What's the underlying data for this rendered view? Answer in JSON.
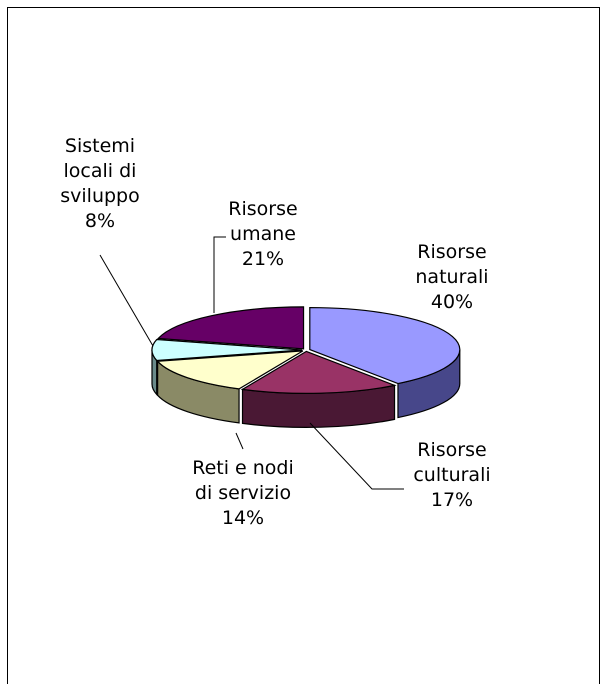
{
  "chart_data": {
    "type": "pie",
    "title": "",
    "slices": [
      {
        "label_lines": [
          "Risorse",
          "naturali"
        ],
        "value": 40,
        "value_label": "40%",
        "color": "#9999ff",
        "side_color": "#47478a"
      },
      {
        "label_lines": [
          "Risorse",
          "culturali"
        ],
        "value": 17,
        "value_label": "17%",
        "color": "#993366",
        "side_color": "#4a1834"
      },
      {
        "label_lines": [
          "Reti e nodi",
          "di servizio"
        ],
        "value": 14,
        "value_label": "14%",
        "color": "#ffffcc",
        "side_color": "#8a8a66"
      },
      {
        "label_lines": [
          "Sistemi",
          "locali di",
          "sviluppo"
        ],
        "value": 8,
        "value_label": "8%",
        "color": "#ccffff",
        "side_color": "#6a8a8a"
      },
      {
        "label_lines": [
          "Risorse",
          "umane"
        ],
        "value": 21,
        "value_label": "21%",
        "color": "#660066",
        "side_color": "#330033"
      }
    ]
  }
}
